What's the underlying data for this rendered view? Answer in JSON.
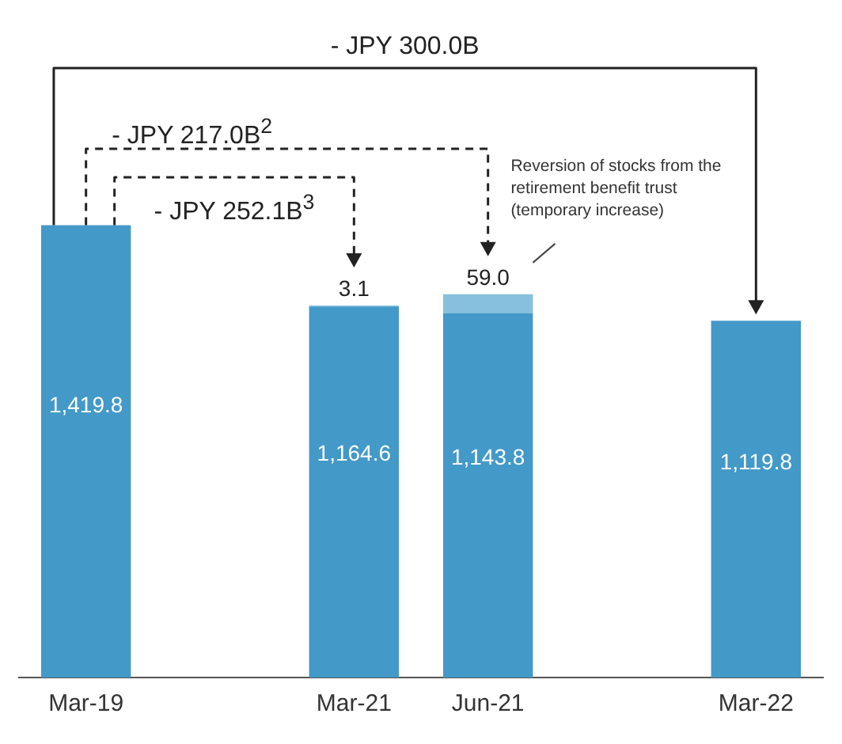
{
  "chart_data": {
    "type": "bar",
    "categories": [
      "Mar-19",
      null,
      "Mar-21",
      "Jun-21",
      null,
      "Mar-22"
    ],
    "stacked": true,
    "tick_labels": "x",
    "grid": false,
    "legend": false,
    "series": [
      {
        "color": "#4399c8",
        "values": [
          1419.8,
          null,
          1164.6,
          1143.8,
          null,
          1119.8
        ],
        "value_labels": [
          "1,419.8",
          null,
          "1,164.6",
          "1,143.8",
          null,
          "1,119.8"
        ]
      },
      {
        "color": "#87bfde",
        "values": [
          null,
          null,
          3.1,
          59.0,
          null,
          null
        ],
        "value_labels": [
          null,
          null,
          "3.1",
          "59.0",
          null,
          null
        ]
      }
    ],
    "annotations": [
      "- JPY 300.0B",
      "- JPY 217.0B$^{2}$",
      "- JPY 252.1B$^{3}$",
      "Reversion of stocks from the retirement benefit trust (temporary increase)"
    ]
  }
}
